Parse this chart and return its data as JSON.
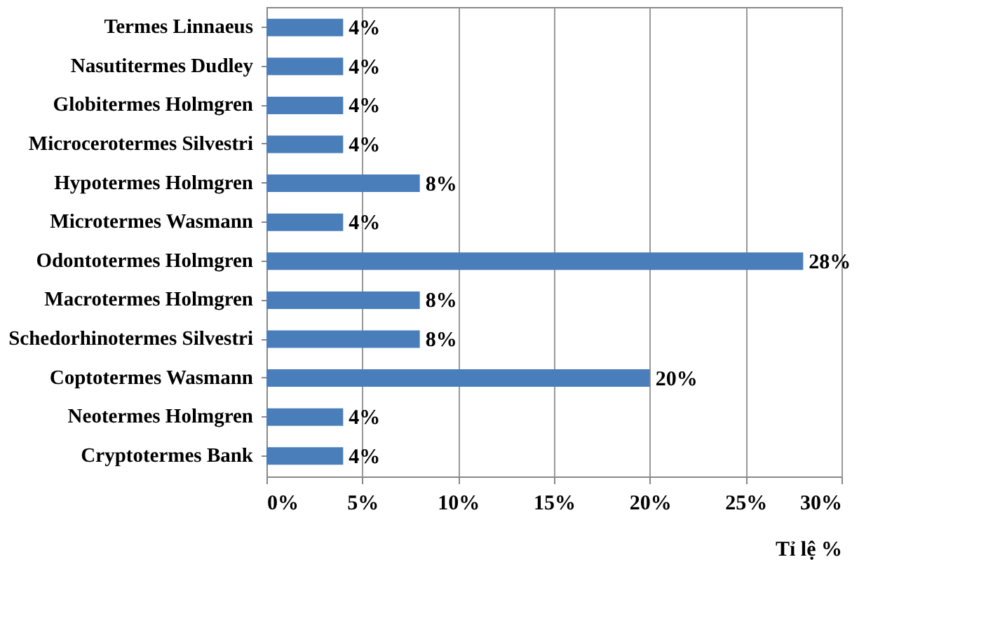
{
  "chart_data": {
    "type": "bar",
    "orientation": "horizontal",
    "xlabel": "Tỉ lệ %",
    "categories": [
      "Termes Linnaeus",
      "Nasutitermes Dudley",
      "Globitermes Holmgren",
      "Microcerotermes Silvestri",
      "Hypotermes Holmgren",
      "Microtermes Wasmann",
      "Odontotermes Holmgren",
      "Macrotermes Holmgren",
      "Schedorhinotermes Silvestri",
      "Coptotermes Wasmann",
      "Neotermes Holmgren",
      "Cryptotermes Bank"
    ],
    "values": [
      4,
      4,
      4,
      4,
      8,
      4,
      28,
      8,
      8,
      20,
      4,
      4
    ],
    "value_labels": [
      "4%",
      "4%",
      "4%",
      "4%",
      "8%",
      "4%",
      "28%",
      "8%",
      "8%",
      "20%",
      "4%",
      "4%"
    ],
    "color": "#4a7ebb",
    "xlim": [
      0,
      30
    ],
    "xticks": [
      {
        "value": 0,
        "label": "0%"
      },
      {
        "value": 5,
        "label": "5%"
      },
      {
        "value": 10,
        "label": "10%"
      },
      {
        "value": 15,
        "label": "15%"
      },
      {
        "value": 20,
        "label": "20%"
      },
      {
        "value": 25,
        "label": "25%"
      },
      {
        "value": 30,
        "label": "30%"
      }
    ],
    "grid": "x"
  }
}
